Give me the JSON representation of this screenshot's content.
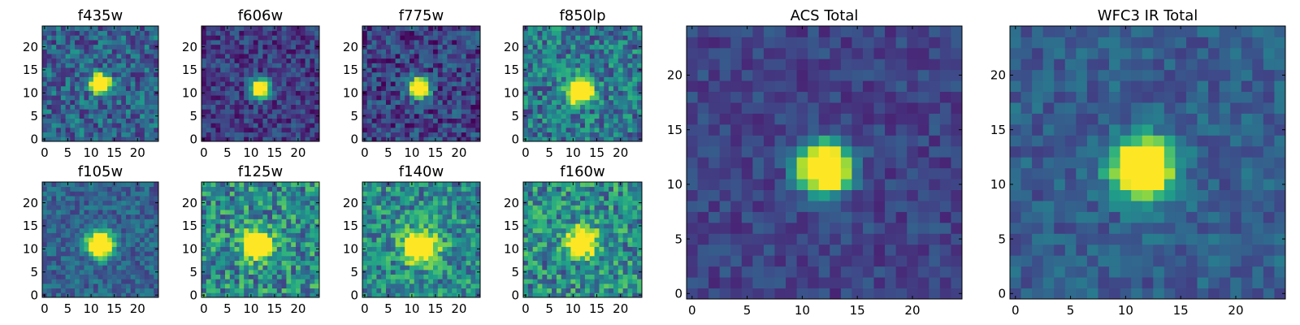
{
  "figure": {
    "colormap": [
      "#440154",
      "#482878",
      "#3e4a89",
      "#31688e",
      "#26828e",
      "#1f9e89",
      "#35b779",
      "#6ece58",
      "#b5de2b",
      "#fde725"
    ]
  },
  "chart_data": [
    {
      "type": "heatmap",
      "title": "f435w",
      "x_ticks": [
        "0",
        "5",
        "10",
        "15",
        "20"
      ],
      "y_ticks": [
        "0",
        "5",
        "10",
        "15",
        "20"
      ],
      "xlim": [
        0,
        25
      ],
      "ylim": [
        0,
        25
      ],
      "grid_size": 25,
      "source": {
        "x": 12,
        "y": 12,
        "sigma": 1.4,
        "peak": 0.95
      },
      "background": 0.32,
      "noise": 0.22,
      "seed": 11
    },
    {
      "type": "heatmap",
      "title": "f606w",
      "x_ticks": [
        "0",
        "5",
        "10",
        "15",
        "20"
      ],
      "y_ticks": [
        "0",
        "5",
        "10",
        "15",
        "20"
      ],
      "xlim": [
        0,
        25
      ],
      "ylim": [
        0,
        25
      ],
      "grid_size": 25,
      "source": {
        "x": 12,
        "y": 11,
        "sigma": 1.3,
        "peak": 1.0
      },
      "background": 0.18,
      "noise": 0.16,
      "seed": 23
    },
    {
      "type": "heatmap",
      "title": "f775w",
      "x_ticks": [
        "0",
        "5",
        "10",
        "15",
        "20"
      ],
      "y_ticks": [
        "0",
        "5",
        "10",
        "15",
        "20"
      ],
      "xlim": [
        0,
        25
      ],
      "ylim": [
        0,
        25
      ],
      "grid_size": 25,
      "source": {
        "x": 11.5,
        "y": 11,
        "sigma": 1.4,
        "peak": 1.0
      },
      "background": 0.2,
      "noise": 0.2,
      "seed": 37
    },
    {
      "type": "heatmap",
      "title": "f850lp",
      "x_ticks": [
        "0",
        "5",
        "10",
        "15",
        "20"
      ],
      "y_ticks": [
        "0",
        "5",
        "10",
        "15",
        "20"
      ],
      "xlim": [
        0,
        25
      ],
      "ylim": [
        0,
        25
      ],
      "grid_size": 25,
      "source": {
        "x": 11.5,
        "y": 10.5,
        "sigma": 1.8,
        "peak": 0.9
      },
      "background": 0.4,
      "noise": 0.25,
      "seed": 41
    },
    {
      "type": "heatmap",
      "title": "f105w",
      "x_ticks": [
        "0",
        "5",
        "10",
        "15",
        "20"
      ],
      "y_ticks": [
        "0",
        "5",
        "10",
        "15",
        "20"
      ],
      "xlim": [
        0,
        25
      ],
      "ylim": [
        0,
        25
      ],
      "grid_size": 25,
      "source": {
        "x": 12,
        "y": 11,
        "sigma": 1.8,
        "peak": 0.9
      },
      "background": 0.32,
      "noise": 0.15,
      "seed": 53
    },
    {
      "type": "heatmap",
      "title": "f125w",
      "x_ticks": [
        "0",
        "5",
        "10",
        "15",
        "20"
      ],
      "y_ticks": [
        "0",
        "5",
        "10",
        "15",
        "20"
      ],
      "xlim": [
        0,
        25
      ],
      "ylim": [
        0,
        25
      ],
      "grid_size": 25,
      "source": {
        "x": 11.5,
        "y": 11,
        "sigma": 2.0,
        "peak": 0.75
      },
      "background": 0.48,
      "noise": 0.28,
      "seed": 67
    },
    {
      "type": "heatmap",
      "title": "f140w",
      "x_ticks": [
        "0",
        "5",
        "10",
        "15",
        "20"
      ],
      "y_ticks": [
        "0",
        "5",
        "10",
        "15",
        "20"
      ],
      "xlim": [
        0,
        25
      ],
      "ylim": [
        0,
        25
      ],
      "grid_size": 25,
      "source": {
        "x": 12,
        "y": 10.5,
        "sigma": 2.4,
        "peak": 0.6
      },
      "background": 0.48,
      "noise": 0.26,
      "seed": 71
    },
    {
      "type": "heatmap",
      "title": "f160w",
      "x_ticks": [
        "0",
        "5",
        "10",
        "15",
        "20"
      ],
      "y_ticks": [
        "0",
        "5",
        "10",
        "15",
        "20"
      ],
      "xlim": [
        0,
        25
      ],
      "ylim": [
        0,
        25
      ],
      "grid_size": 25,
      "source": {
        "x": 12,
        "y": 11.5,
        "sigma": 2.2,
        "peak": 0.6
      },
      "background": 0.48,
      "noise": 0.28,
      "seed": 83
    },
    {
      "type": "heatmap",
      "title": "ACS Total",
      "x_ticks": [
        "0",
        "5",
        "10",
        "15",
        "20"
      ],
      "y_ticks": [
        "0",
        "5",
        "10",
        "15",
        "20"
      ],
      "xlim": [
        0,
        25
      ],
      "ylim": [
        0,
        25
      ],
      "grid_size": 25,
      "source": {
        "x": 12,
        "y": 11.5,
        "sigma": 1.5,
        "peak": 0.95
      },
      "background": 0.2,
      "noise": 0.1,
      "seed": 97
    },
    {
      "type": "heatmap",
      "title": "WFC3 IR Total",
      "x_ticks": [
        "0",
        "5",
        "10",
        "15",
        "20"
      ],
      "y_ticks": [
        "0",
        "5",
        "10",
        "15",
        "20"
      ],
      "xlim": [
        0,
        25
      ],
      "ylim": [
        0,
        25
      ],
      "grid_size": 25,
      "source": {
        "x": 11.5,
        "y": 11.5,
        "sigma": 1.8,
        "peak": 0.85
      },
      "background": 0.3,
      "noise": 0.12,
      "seed": 101
    }
  ]
}
